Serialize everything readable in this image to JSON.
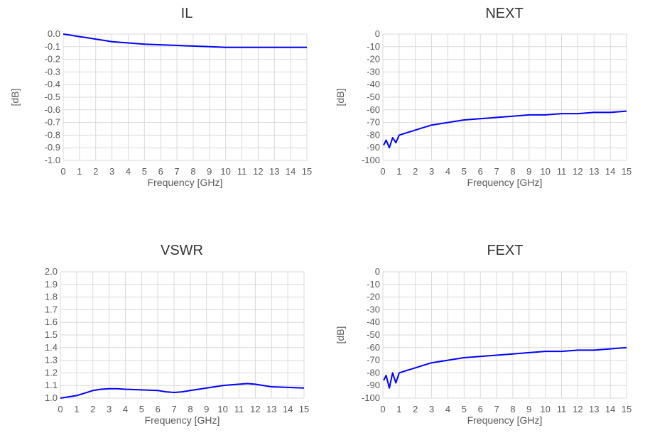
{
  "chart_data": [
    {
      "type": "line",
      "title": "IL",
      "xlabel": "Frequency [GHz]",
      "ylabel": "[dB]",
      "xlim": [
        0,
        15
      ],
      "ylim": [
        -1.0,
        0.0
      ],
      "x_ticks": [
        "0",
        "1",
        "2",
        "3",
        "4",
        "5",
        "6",
        "7",
        "8",
        "9",
        "10",
        "11",
        "12",
        "13",
        "14",
        "15"
      ],
      "y_ticks": [
        "0.0",
        "-0.1",
        "-0.2",
        "-0.3",
        "-0.4",
        "-0.5",
        "-0.6",
        "-0.7",
        "-0.8",
        "-0.9",
        "-1.0"
      ],
      "grid": true,
      "series": [
        {
          "color": "#0000ff",
          "x": [
            0,
            0.5,
            1,
            1.5,
            2,
            2.5,
            3,
            4,
            5,
            6,
            7,
            8,
            9,
            10,
            11,
            12,
            13,
            14,
            15
          ],
          "y": [
            0.0,
            -0.01,
            -0.02,
            -0.03,
            -0.04,
            -0.05,
            -0.06,
            -0.07,
            -0.08,
            -0.085,
            -0.09,
            -0.095,
            -0.1,
            -0.105,
            -0.105,
            -0.105,
            -0.105,
            -0.105,
            -0.105
          ]
        }
      ]
    },
    {
      "type": "line",
      "title": "NEXT",
      "xlabel": "Frequency [GHz]",
      "ylabel": "[dB]",
      "xlim": [
        0,
        15
      ],
      "ylim": [
        -100,
        0
      ],
      "x_ticks": [
        "0",
        "1",
        "2",
        "3",
        "4",
        "5",
        "6",
        "7",
        "8",
        "9",
        "10",
        "11",
        "12",
        "13",
        "14",
        "15"
      ],
      "y_ticks": [
        "0",
        "-10",
        "-20",
        "-30",
        "-40",
        "-50",
        "-60",
        "-70",
        "-80",
        "-90",
        "-100"
      ],
      "grid": true,
      "series": [
        {
          "color": "#0000ff",
          "x": [
            0.05,
            0.2,
            0.4,
            0.6,
            0.8,
            1,
            1.5,
            2,
            2.5,
            3,
            4,
            5,
            6,
            7,
            8,
            9,
            10,
            11,
            12,
            13,
            14,
            15
          ],
          "y": [
            -88,
            -84,
            -90,
            -82,
            -86,
            -80,
            -78,
            -76,
            -74,
            -72,
            -70,
            -68,
            -67,
            -66,
            -65,
            -64,
            -64,
            -63,
            -63,
            -62,
            -62,
            -61
          ]
        }
      ]
    },
    {
      "type": "line",
      "title": "VSWR",
      "xlabel": "Frequency [GHz]",
      "ylabel": "",
      "xlim": [
        0,
        15
      ],
      "ylim": [
        1.0,
        2.0
      ],
      "x_ticks": [
        "0",
        "1",
        "2",
        "3",
        "4",
        "5",
        "6",
        "7",
        "8",
        "9",
        "10",
        "11",
        "12",
        "13",
        "14",
        "15"
      ],
      "y_ticks": [
        "2.0",
        "1.9",
        "1.8",
        "1.7",
        "1.6",
        "1.5",
        "1.4",
        "1.3",
        "1.2",
        "1.1",
        "1.0"
      ],
      "grid": true,
      "series": [
        {
          "color": "#0000ff",
          "x": [
            0,
            0.5,
            1,
            1.5,
            2,
            2.5,
            3,
            3.5,
            4,
            5,
            6,
            6.5,
            7,
            7.5,
            8,
            9,
            10,
            10.5,
            11,
            11.5,
            12,
            12.5,
            13,
            14,
            15
          ],
          "y": [
            1.0,
            1.01,
            1.02,
            1.04,
            1.06,
            1.07,
            1.075,
            1.075,
            1.07,
            1.065,
            1.06,
            1.05,
            1.045,
            1.05,
            1.06,
            1.08,
            1.1,
            1.105,
            1.11,
            1.115,
            1.11,
            1.1,
            1.09,
            1.085,
            1.08
          ]
        }
      ]
    },
    {
      "type": "line",
      "title": "FEXT",
      "xlabel": "Frequency [GHz]",
      "ylabel": "[dB]",
      "xlim": [
        0,
        15
      ],
      "ylim": [
        -100,
        0
      ],
      "x_ticks": [
        "0",
        "1",
        "2",
        "3",
        "4",
        "5",
        "6",
        "7",
        "8",
        "9",
        "10",
        "11",
        "12",
        "13",
        "14",
        "15"
      ],
      "y_ticks": [
        "0",
        "-10",
        "-20",
        "-30",
        "-40",
        "-50",
        "-60",
        "-70",
        "-80",
        "-90",
        "-100"
      ],
      "grid": true,
      "series": [
        {
          "color": "#0000ff",
          "x": [
            0.05,
            0.2,
            0.4,
            0.6,
            0.8,
            1,
            1.5,
            2,
            2.5,
            3,
            4,
            5,
            6,
            7,
            8,
            9,
            10,
            11,
            12,
            13,
            14,
            15
          ],
          "y": [
            -86,
            -82,
            -92,
            -80,
            -88,
            -80,
            -78,
            -76,
            -74,
            -72,
            -70,
            -68,
            -67,
            -66,
            -65,
            -64,
            -63,
            -63,
            -62,
            -62,
            -61,
            -60
          ]
        }
      ]
    }
  ]
}
